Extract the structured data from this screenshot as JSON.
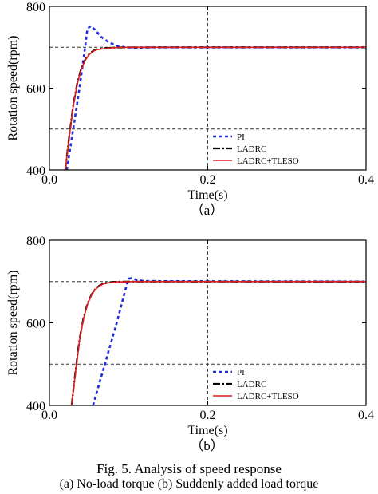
{
  "figure": {
    "caption_line1": "Fig. 5.   Analysis of speed response",
    "caption_line2": "(a) No-load torque (b) Suddenly added load torque"
  },
  "colors": {
    "pi": "#1f2fe0",
    "ladrc": "#000000",
    "ladrc_tleso": "#e01b1b",
    "grid": "#333333"
  },
  "chart_data": [
    {
      "type": "line",
      "panel_label": "（a）",
      "xlabel": "Time(s)",
      "ylabel": "Rotation speed(rpm)",
      "xlim": [
        0.0,
        0.4
      ],
      "ylim": [
        400,
        800
      ],
      "xticks": [
        "0.0",
        "0.2",
        "0.4"
      ],
      "yticks": [
        "400",
        "600",
        "800"
      ],
      "grid": {
        "x": [
          0.2
        ],
        "y": [
          500,
          700
        ]
      },
      "legend_placement": "bottom-right",
      "series": [
        {
          "name": "PI",
          "style": "dotted",
          "x": [
            0.022,
            0.03,
            0.038,
            0.045,
            0.048,
            0.052,
            0.058,
            0.065,
            0.075,
            0.085,
            0.095,
            0.11,
            0.13,
            0.4
          ],
          "y": [
            400,
            500,
            600,
            700,
            745,
            752,
            742,
            726,
            712,
            704,
            700,
            699,
            700,
            700
          ]
        },
        {
          "name": "LADRC",
          "style": "dashdot",
          "x": [
            0.02,
            0.025,
            0.03,
            0.035,
            0.04,
            0.045,
            0.05,
            0.055,
            0.06,
            0.07,
            0.08,
            0.09,
            0.1,
            0.11,
            0.13,
            0.4
          ],
          "y": [
            400,
            482,
            558,
            611,
            647,
            669,
            683,
            691,
            695,
            698,
            699,
            699.5,
            700,
            700,
            700,
            700
          ]
        },
        {
          "name": "LADRC+TLESO",
          "style": "solid",
          "x": [
            0.02,
            0.025,
            0.03,
            0.035,
            0.04,
            0.045,
            0.05,
            0.055,
            0.06,
            0.07,
            0.08,
            0.09,
            0.1,
            0.11,
            0.13,
            0.4
          ],
          "y": [
            400,
            480,
            556,
            609,
            645,
            668,
            682,
            690,
            694,
            697,
            699,
            699.5,
            700,
            700,
            700,
            700
          ]
        }
      ]
    },
    {
      "type": "line",
      "panel_label": "（b）",
      "xlabel": "Time(s)",
      "ylabel": "Rotation speed(rpm)",
      "xlim": [
        0.0,
        0.4
      ],
      "ylim": [
        400,
        800
      ],
      "xticks": [
        "0.0",
        "0.2",
        "0.4"
      ],
      "yticks": [
        "400",
        "600",
        "800"
      ],
      "grid": {
        "x": [
          0.2
        ],
        "y": [
          500,
          700
        ]
      },
      "legend_placement": "bottom-right",
      "series": [
        {
          "name": "PI",
          "style": "dotted",
          "x": [
            0.055,
            0.07,
            0.085,
            0.098,
            0.1,
            0.104,
            0.11,
            0.12,
            0.4
          ],
          "y": [
            400,
            500,
            600,
            695,
            707,
            708,
            704,
            701,
            700
          ]
        },
        {
          "name": "LADRC",
          "style": "dashdot",
          "x": [
            0.028,
            0.033,
            0.038,
            0.043,
            0.048,
            0.053,
            0.058,
            0.063,
            0.068,
            0.075,
            0.085,
            0.095,
            0.11,
            0.4
          ],
          "y": [
            400,
            485,
            560,
            612,
            646,
            668,
            682,
            690,
            695,
            698,
            699.5,
            700,
            700,
            700
          ]
        },
        {
          "name": "LADRC+TLESO",
          "style": "solid",
          "x": [
            0.028,
            0.033,
            0.038,
            0.043,
            0.048,
            0.053,
            0.058,
            0.063,
            0.068,
            0.075,
            0.085,
            0.095,
            0.11,
            0.4
          ],
          "y": [
            400,
            482,
            557,
            610,
            644,
            667,
            681,
            689,
            694,
            697,
            699,
            699.8,
            700,
            700
          ]
        }
      ]
    }
  ]
}
